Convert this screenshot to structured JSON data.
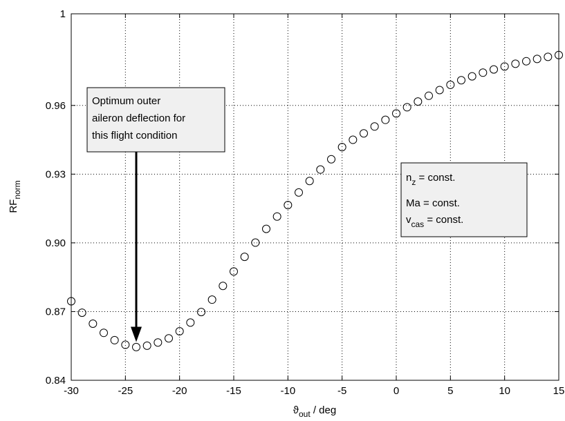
{
  "chart_data": {
    "type": "scatter",
    "xlabel": {
      "main": "ϑ",
      "sub": "out",
      "suffix": " / deg"
    },
    "ylabel": {
      "main": "RF",
      "sub": "norm"
    },
    "xlim": [
      -30,
      15
    ],
    "ylim": [
      0.84,
      1.0
    ],
    "xticks": [
      -30,
      -25,
      -20,
      -15,
      -10,
      -5,
      0,
      5,
      10,
      15
    ],
    "yticks": [
      0.84,
      0.87,
      0.9,
      0.93,
      0.96,
      1.0
    ],
    "xtick_labels": [
      "-30",
      "-25",
      "-20",
      "-15",
      "-10",
      "-5",
      "0",
      "5",
      "10",
      "15"
    ],
    "ytick_labels": [
      "0.84",
      "0.87",
      "0.90",
      "0.93",
      "0.96",
      "1"
    ],
    "grid": true,
    "marker": "open-circle",
    "series": [
      {
        "x": [
          -30,
          -29,
          -28,
          -27,
          -26,
          -25,
          -24,
          -23,
          -22,
          -21,
          -20,
          -19,
          -18,
          -17,
          -16,
          -15,
          -14,
          -13,
          -12,
          -11,
          -10,
          -9,
          -8,
          -7,
          -6,
          -5,
          -4,
          -3,
          -2,
          -1,
          0,
          1,
          2,
          3,
          4,
          5,
          6,
          7,
          8,
          9,
          10,
          11,
          12,
          13,
          14,
          15
        ],
        "y": [
          0.8745,
          0.8695,
          0.8647,
          0.8607,
          0.8575,
          0.8555,
          0.8545,
          0.8551,
          0.8565,
          0.8583,
          0.8614,
          0.8652,
          0.8698,
          0.8752,
          0.8812,
          0.8875,
          0.8939,
          0.9001,
          0.9061,
          0.9115,
          0.9165,
          0.922,
          0.927,
          0.932,
          0.9365,
          0.9418,
          0.945,
          0.9478,
          0.9508,
          0.9537,
          0.9565,
          0.9592,
          0.9617,
          0.9642,
          0.9667,
          0.969,
          0.971,
          0.9727,
          0.9743,
          0.9757,
          0.977,
          0.9782,
          0.9793,
          0.9803,
          0.9812,
          0.982
        ]
      }
    ],
    "annotations": [
      {
        "lines": [
          "Optimum outer",
          "aileron deflection for",
          "this flight condition"
        ],
        "arrow_to": {
          "x": -24,
          "y": 0.8555
        }
      },
      {
        "lines": [
          {
            "main": "n",
            "sub": "z",
            "rest": " = const."
          },
          {
            "main": "Ma",
            "sub": "",
            "rest": " = const."
          },
          {
            "main": "v",
            "sub": "cas",
            "rest": " = const."
          }
        ]
      }
    ]
  }
}
